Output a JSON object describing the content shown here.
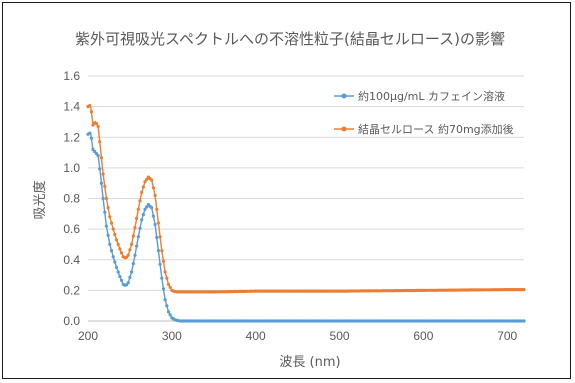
{
  "chart_data": {
    "type": "line",
    "title": "紫外可視吸光スペクトルへの不溶性粒子(結晶セルロース)の影響",
    "xlabel": "波長 (nm)",
    "ylabel": "吸光度",
    "xlim": [
      200,
      720
    ],
    "ylim": [
      0.0,
      1.6
    ],
    "xticks": [
      "200",
      "300",
      "400",
      "500",
      "600",
      "700"
    ],
    "yticks": [
      "0.0",
      "0.2",
      "0.4",
      "0.6",
      "0.8",
      "1.0",
      "1.2",
      "1.4",
      "1.6"
    ],
    "grid": "horizontal",
    "legend_position": "top-right",
    "series": [
      {
        "name": "約100µg/mL カフェイン溶液",
        "color": "#5B9BD5",
        "marker": "circle",
        "x": [
          200,
          203,
          206,
          209,
          212,
          215,
          218,
          222,
          226,
          230,
          234,
          238,
          242,
          245,
          248,
          252,
          256,
          260,
          264,
          268,
          272,
          276,
          280,
          284,
          288,
          292,
          296,
          300,
          305,
          310,
          320,
          350,
          400,
          500,
          600,
          700,
          720
        ],
        "y": [
          1.22,
          1.23,
          1.12,
          1.1,
          1.08,
          0.95,
          0.8,
          0.62,
          0.5,
          0.42,
          0.35,
          0.29,
          0.24,
          0.23,
          0.25,
          0.32,
          0.43,
          0.55,
          0.66,
          0.73,
          0.76,
          0.74,
          0.63,
          0.46,
          0.28,
          0.14,
          0.06,
          0.02,
          0.005,
          0.0,
          0.0,
          0.0,
          0.0,
          0.0,
          0.0,
          0.0,
          0.0
        ]
      },
      {
        "name": "結晶セルロース 約70mg添加後",
        "color": "#ED7D31",
        "marker": "circle",
        "x": [
          200,
          203,
          206,
          209,
          212,
          215,
          218,
          222,
          226,
          230,
          234,
          238,
          242,
          245,
          248,
          252,
          256,
          260,
          264,
          268,
          272,
          276,
          280,
          284,
          288,
          292,
          296,
          300,
          305,
          310,
          320,
          350,
          400,
          500,
          600,
          700,
          720
        ],
        "y": [
          1.4,
          1.41,
          1.28,
          1.3,
          1.27,
          1.12,
          0.96,
          0.8,
          0.68,
          0.6,
          0.53,
          0.47,
          0.42,
          0.41,
          0.43,
          0.5,
          0.61,
          0.73,
          0.84,
          0.91,
          0.94,
          0.92,
          0.82,
          0.64,
          0.46,
          0.32,
          0.24,
          0.2,
          0.19,
          0.19,
          0.19,
          0.19,
          0.195,
          0.195,
          0.2,
          0.205,
          0.205
        ]
      }
    ]
  }
}
